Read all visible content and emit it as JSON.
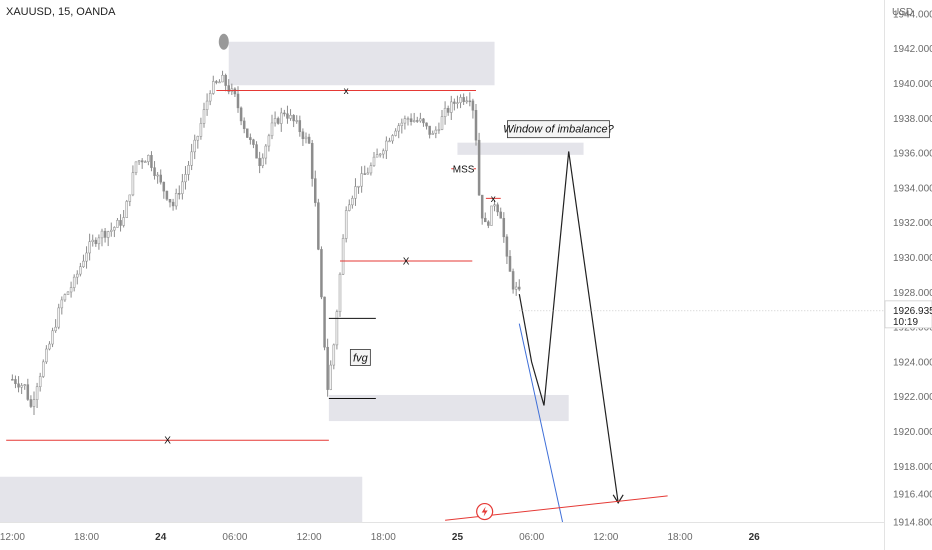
{
  "chart_data": {
    "type": "candlestick",
    "title": "XAUUSD, 15, OANDA",
    "currency_label": "USD",
    "ylim": [
      1914.8,
      1944.8
    ],
    "y_ticks": [
      "1914.800",
      "1916.400",
      "1918.000",
      "1920.000",
      "1922.000",
      "1924.000",
      "1926.000",
      "1928.000",
      "1930.000",
      "1932.000",
      "1934.000",
      "1936.000",
      "1938.000",
      "1940.000",
      "1942.000",
      "1944.000"
    ],
    "y_tick_values": [
      1914.8,
      1916.4,
      1918,
      1920,
      1922,
      1924,
      1926,
      1928,
      1930,
      1932,
      1934,
      1936,
      1938,
      1940,
      1942,
      1944
    ],
    "x_ticks": [
      {
        "label": "12:00",
        "bold": false
      },
      {
        "label": "18:00",
        "bold": false
      },
      {
        "label": "24",
        "bold": true
      },
      {
        "label": "06:00",
        "bold": false
      },
      {
        "label": "12:00",
        "bold": false
      },
      {
        "label": "18:00",
        "bold": false
      },
      {
        "label": "25",
        "bold": true
      },
      {
        "label": "06:00",
        "bold": false
      },
      {
        "label": "12:00",
        "bold": false
      },
      {
        "label": "18:00",
        "bold": false
      },
      {
        "label": "26",
        "bold": true
      }
    ],
    "x_tick_hours": [
      0,
      6,
      12,
      18,
      24,
      30,
      36,
      42,
      48,
      54,
      60
    ],
    "hours_range": [
      -1,
      70.5
    ],
    "current_price": {
      "value": 1926.935,
      "label": "1926.935",
      "countdown": "10:19"
    },
    "candle_path": [
      [
        0,
        1923
      ],
      [
        1,
        1922.6
      ],
      [
        1.5,
        1921.4
      ],
      [
        2,
        1922.8
      ],
      [
        3,
        1925
      ],
      [
        4,
        1927.5
      ],
      [
        5,
        1928.6
      ],
      [
        6,
        1930.4
      ],
      [
        7,
        1931.3
      ],
      [
        8,
        1931.6
      ],
      [
        9,
        1932.2
      ],
      [
        10,
        1935.5
      ],
      [
        11,
        1935.8
      ],
      [
        12,
        1934.2
      ],
      [
        13,
        1933
      ],
      [
        14,
        1934.8
      ],
      [
        15,
        1937
      ],
      [
        16,
        1939.7
      ],
      [
        17,
        1940.2
      ],
      [
        18,
        1939.2
      ],
      [
        19,
        1937
      ],
      [
        20,
        1935.5
      ],
      [
        21,
        1937.5
      ],
      [
        22,
        1938.4
      ],
      [
        23,
        1937.6
      ],
      [
        24,
        1936.5
      ],
      [
        24.5,
        1933
      ],
      [
        25,
        1927.5
      ],
      [
        25.5,
        1922.5
      ],
      [
        26,
        1925
      ],
      [
        26.5,
        1929
      ],
      [
        27,
        1933
      ],
      [
        28,
        1934.3
      ],
      [
        29,
        1935.2
      ],
      [
        30,
        1936.4
      ],
      [
        31,
        1937.5
      ],
      [
        32,
        1938
      ],
      [
        33,
        1937.8
      ],
      [
        34,
        1937
      ],
      [
        35,
        1938.3
      ],
      [
        36,
        1939.1
      ],
      [
        37,
        1939.3
      ],
      [
        37.4,
        1938.2
      ],
      [
        37.8,
        1933
      ],
      [
        38.3,
        1931.7
      ],
      [
        39,
        1933.2
      ],
      [
        39.5,
        1932.5
      ],
      [
        40,
        1929.8
      ],
      [
        40.5,
        1928.4
      ],
      [
        41,
        1927.9
      ]
    ],
    "projection_path": [
      [
        41,
        1927.9
      ],
      [
        42,
        1924
      ],
      [
        43,
        1921.5
      ],
      [
        45,
        1936.1
      ],
      [
        49,
        1915.9
      ]
    ],
    "blue_line": [
      [
        41,
        1926.2
      ],
      [
        44.5,
        1914.8
      ]
    ],
    "red_trendline": [
      [
        35,
        1914.9
      ],
      [
        53,
        1916.3
      ]
    ],
    "horizontal_levels": [
      {
        "y": 1939.6,
        "x0": 16.5,
        "x1": 37.5,
        "label": "x"
      },
      {
        "y": 1929.8,
        "x0": 26.5,
        "x1": 37.2,
        "label": "X"
      },
      {
        "y": 1919.5,
        "x0": -0.5,
        "x1": 25.6,
        "label": "X"
      },
      {
        "y": 1935.1,
        "x0": 35.5,
        "x1": 37.5,
        "label": "MSS"
      },
      {
        "y": 1933.4,
        "x0": 38.3,
        "x1": 39.5,
        "label": "x"
      }
    ],
    "zones": [
      {
        "y0": 1939.9,
        "y1": 1942.4,
        "x0": 17.5,
        "x1": 39,
        "label": ""
      },
      {
        "y0": 1935.9,
        "y1": 1936.6,
        "x0": 36,
        "x1": 46.2,
        "label": "Window of imbalance?"
      },
      {
        "y0": 1920.6,
        "y1": 1922.1,
        "x0": 25.6,
        "x1": 45,
        "label": ""
      },
      {
        "y0": 1914.8,
        "y1": 1917.4,
        "x0": -1,
        "x1": 28.3,
        "label": ""
      }
    ],
    "fvg": {
      "top": 1926.5,
      "bottom": 1921.9,
      "x0": 25.6,
      "x1": 29.4,
      "label": "fvg"
    }
  }
}
